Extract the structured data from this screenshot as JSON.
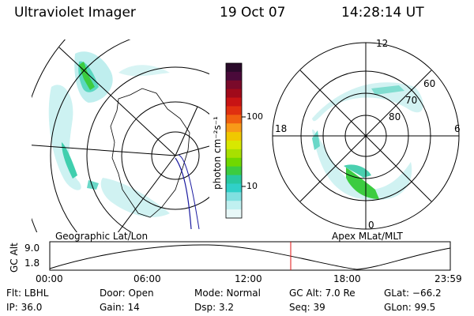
{
  "header": {
    "title": "Ultraviolet Imager",
    "date": "19 Oct 07",
    "time": "14:28:14 UT"
  },
  "colorbar": {
    "unit_label": "photon cm⁻²s⁻¹",
    "ticks": [
      "100",
      "10"
    ],
    "colors": [
      "#2a0a2a",
      "#4a0a3a",
      "#7a0a2a",
      "#a00a1a",
      "#c81414",
      "#e03010",
      "#f06010",
      "#f89a18",
      "#f0c800",
      "#d8e800",
      "#a8e000",
      "#70d800",
      "#3ccc40",
      "#28c8a0",
      "#30d0c8",
      "#80e0e0",
      "#c0f0f0",
      "#e8f8f8"
    ]
  },
  "left_map": {
    "caption": "Geographic Lat/Lon"
  },
  "right_map": {
    "caption": "Apex  MLat/MLT",
    "mlt_labels": {
      "top": "12",
      "left": "18",
      "right": "6",
      "bottom": "0"
    },
    "lat_labels": [
      "60",
      "70",
      "80"
    ]
  },
  "orbit_plot": {
    "ylabel": "GC Alt",
    "y_ticks": [
      "9.0",
      "1.8"
    ],
    "x_ticks": [
      "00:00",
      "06:00",
      "12:00",
      "18:00",
      "23:59"
    ]
  },
  "status": {
    "flt": "Flt: LBHL",
    "ip": "IP: 36.0",
    "door": "Door: Open",
    "gain": "Gain: 14",
    "mode": "Mode: Normal",
    "dsp": "Dsp:      3.2",
    "gc_alt": "GC Alt: 7.0 Re",
    "seq": "Seq: 39",
    "glat": "GLat: −66.2",
    "glon": "GLon:  99.5"
  }
}
